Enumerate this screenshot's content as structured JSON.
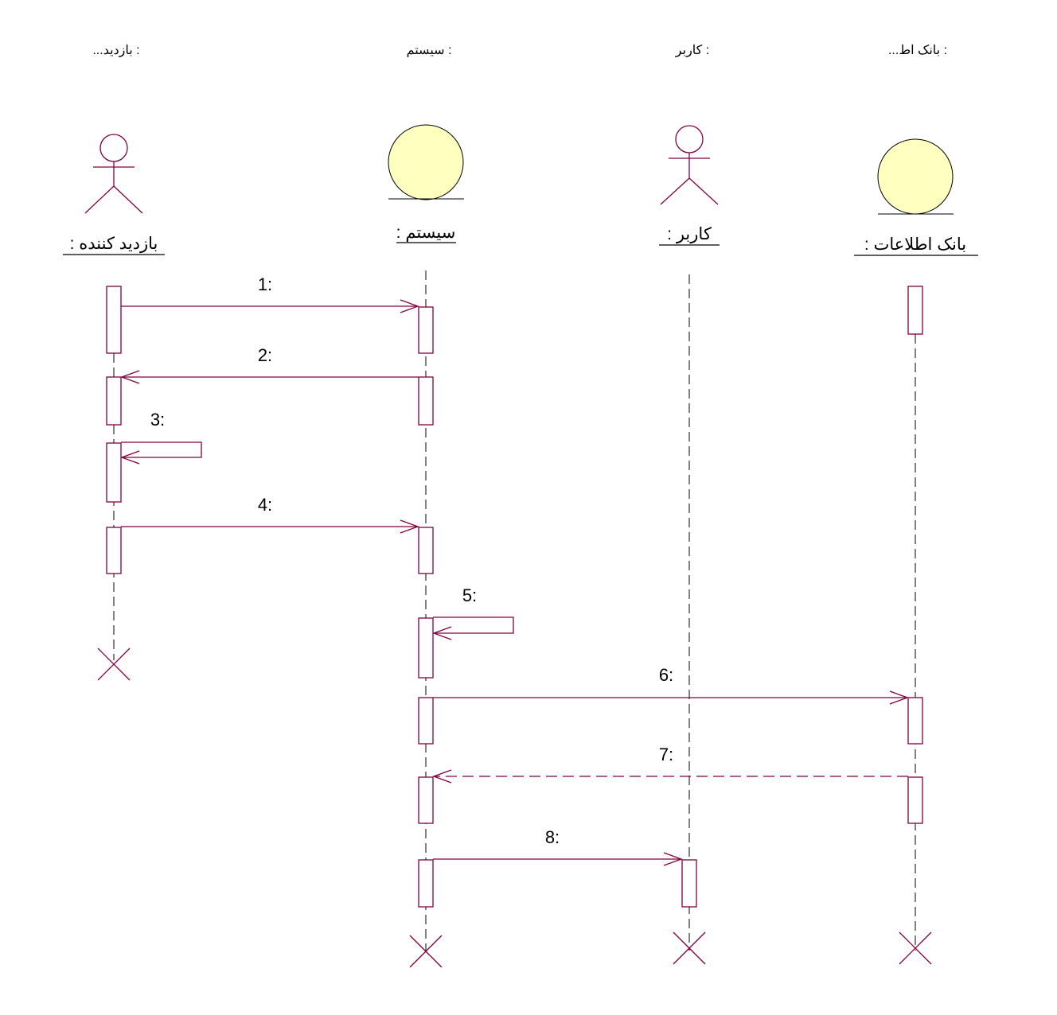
{
  "colors": {
    "line": "#800040",
    "entity_fill": "#ffffc0",
    "lifeline": "#000000"
  },
  "headers": [
    "...بازدید :",
    "سیستم :",
    "کاربر :",
    "...بانک اط :"
  ],
  "participants": [
    {
      "name": ": بازدید کننده",
      "shape": "actor"
    },
    {
      "name": ": سیستم",
      "shape": "entity"
    },
    {
      "name": ": کاربر",
      "shape": "actor"
    },
    {
      "name": ": بانک اطلاعات",
      "shape": "entity"
    }
  ],
  "messages": [
    {
      "label": "1:",
      "from": 0,
      "to": 1,
      "style": "sync"
    },
    {
      "label": "2:",
      "from": 1,
      "to": 0,
      "style": "sync"
    },
    {
      "label": "3:",
      "from": 0,
      "to": 0,
      "style": "self"
    },
    {
      "label": "4:",
      "from": 0,
      "to": 1,
      "style": "sync"
    },
    {
      "label": "5:",
      "from": 1,
      "to": 1,
      "style": "self"
    },
    {
      "label": "6:",
      "from": 1,
      "to": 3,
      "style": "sync"
    },
    {
      "label": "7:",
      "from": 3,
      "to": 1,
      "style": "return"
    },
    {
      "label": "8:",
      "from": 1,
      "to": 2,
      "style": "sync"
    }
  ]
}
